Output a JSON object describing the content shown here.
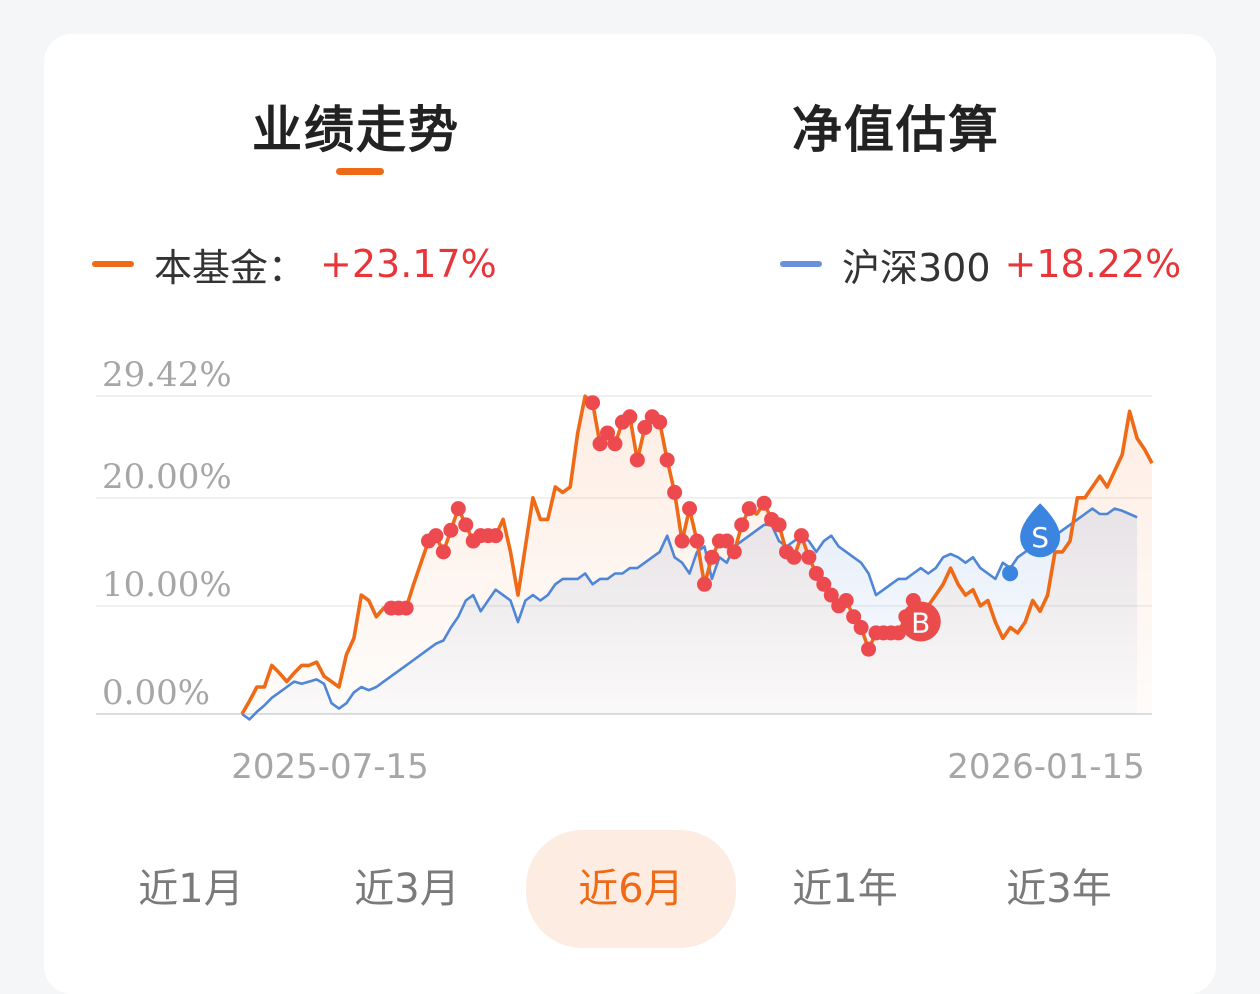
{
  "tabs": [
    {
      "label": "业绩走势",
      "active": true
    },
    {
      "label": "净值估算",
      "active": false
    }
  ],
  "legend": {
    "fund": {
      "name": "本基金：",
      "value": "+23.17%",
      "color": "#ef6a17"
    },
    "index": {
      "name": "沪深300",
      "value": "+18.22%",
      "color": "#6a8fdc"
    }
  },
  "periods": [
    {
      "label": "近1月",
      "active": false
    },
    {
      "label": "近3月",
      "active": false
    },
    {
      "label": "近6月",
      "active": true
    },
    {
      "label": "近1年",
      "active": false
    },
    {
      "label": "近3年",
      "active": false
    }
  ],
  "chart_data": {
    "type": "line",
    "y_ticks": [
      "29.42%",
      "20.00%",
      "10.00%",
      "0.00%"
    ],
    "y_tick_values": [
      29.42,
      20.0,
      10.0,
      0.0
    ],
    "x_ticks": [
      "2025-07-15",
      "2026-01-15"
    ],
    "ylim": [
      0,
      29.42
    ],
    "grid": true,
    "series": [
      {
        "name": "本基金",
        "color": "#ef6a17",
        "values": [
          0.0,
          1.2,
          2.5,
          2.5,
          4.5,
          3.8,
          3.0,
          3.8,
          4.5,
          4.5,
          4.8,
          3.5,
          3.0,
          2.5,
          5.5,
          7.0,
          11.0,
          10.5,
          9.0,
          9.8,
          9.8,
          9.8,
          9.8,
          12.0,
          14.0,
          16.0,
          16.5,
          15.0,
          17.0,
          19.0,
          17.5,
          16.0,
          16.5,
          16.5,
          16.5,
          18.0,
          15.0,
          11.0,
          15.5,
          20.0,
          18.0,
          18.0,
          21.0,
          20.5,
          21.0,
          26.0,
          29.4,
          28.8,
          25.0,
          26.0,
          25.0,
          27.0,
          27.5,
          23.5,
          26.5,
          27.5,
          27.0,
          23.5,
          20.5,
          16.0,
          19.0,
          16.0,
          12.0,
          14.5,
          16.0,
          16.0,
          15.0,
          17.5,
          19.0,
          18.5,
          19.5,
          18.0,
          17.5,
          15.0,
          14.5,
          16.5,
          14.5,
          13.0,
          12.0,
          11.0,
          10.0,
          10.5,
          9.0,
          8.0,
          6.0,
          7.5,
          7.5,
          7.5,
          7.5,
          9.0,
          10.5,
          8.0,
          10.0,
          11.0,
          12.0,
          13.5,
          12.0,
          11.0,
          11.5,
          10.0,
          10.5,
          8.5,
          7.0,
          8.0,
          7.5,
          8.5,
          10.5,
          9.5,
          11.0,
          15.0,
          15.0,
          16.0,
          20.0,
          20.0,
          21.0,
          22.0,
          21.0,
          22.5,
          24.0,
          28.0,
          25.5,
          24.5,
          23.2
        ]
      },
      {
        "name": "沪深300",
        "color": "#4f86d6",
        "values": [
          0.0,
          -0.5,
          0.2,
          0.8,
          1.5,
          2.0,
          2.5,
          3.0,
          2.8,
          3.0,
          3.2,
          2.8,
          1.0,
          0.5,
          1.0,
          2.0,
          2.5,
          2.2,
          2.5,
          3.0,
          3.5,
          4.0,
          4.5,
          5.0,
          5.5,
          6.0,
          6.5,
          6.8,
          8.0,
          9.0,
          10.5,
          11.0,
          9.5,
          10.5,
          11.5,
          11.0,
          10.5,
          8.5,
          10.5,
          11.0,
          10.5,
          11.0,
          12.0,
          12.5,
          12.5,
          12.5,
          13.0,
          12.0,
          12.5,
          12.5,
          13.0,
          13.0,
          13.5,
          13.5,
          14.0,
          14.5,
          15.0,
          16.5,
          14.5,
          14.0,
          13.0,
          15.0,
          15.5,
          12.5,
          14.5,
          14.0,
          15.5,
          16.0,
          16.5,
          17.0,
          17.5,
          17.5,
          16.0,
          15.5,
          16.0,
          16.5,
          16.0,
          15.0,
          16.0,
          16.5,
          15.5,
          15.0,
          14.5,
          14.0,
          13.0,
          11.0,
          11.5,
          12.0,
          12.5,
          12.5,
          13.0,
          13.5,
          13.0,
          13.5,
          14.5,
          14.8,
          14.5,
          14.0,
          14.5,
          13.5,
          13.0,
          12.5,
          14.0,
          13.5,
          14.5,
          15.0,
          15.5,
          15.8,
          16.0,
          16.5,
          17.0,
          17.5,
          18.0,
          18.5,
          19.0,
          18.5,
          18.5,
          19.0,
          18.8,
          18.5,
          18.2
        ]
      }
    ],
    "markers": [
      {
        "label": "B",
        "index": 91,
        "color": "#ea4b4b"
      },
      {
        "label": "S",
        "index": 107,
        "color": "#3b84e0"
      }
    ]
  }
}
